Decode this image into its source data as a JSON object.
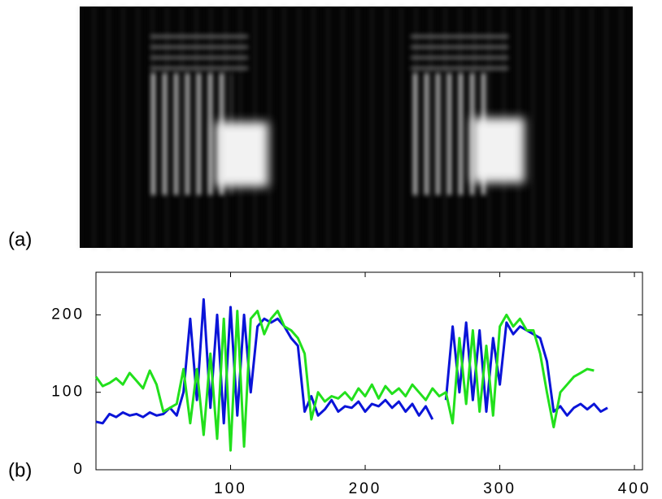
{
  "chart_data": {
    "type": "line",
    "panel_labels": [
      "(a)",
      "(b)"
    ],
    "x": [
      0,
      5,
      10,
      15,
      20,
      25,
      30,
      35,
      40,
      45,
      50,
      55,
      60,
      65,
      70,
      75,
      80,
      85,
      90,
      95,
      100,
      105,
      110,
      115,
      120,
      125,
      130,
      135,
      140,
      145,
      150,
      155,
      160,
      165,
      170,
      175,
      180,
      185,
      190,
      195,
      200,
      205,
      210,
      215,
      220,
      225,
      230,
      235,
      240,
      245,
      250,
      255,
      260,
      265,
      270,
      275,
      280,
      285,
      290,
      295,
      300,
      305,
      310,
      315,
      320,
      325,
      330,
      335,
      340,
      345,
      350,
      355,
      360,
      365,
      370,
      375,
      380
    ],
    "series": [
      {
        "color": "#0a14d8",
        "values": [
          62,
          60,
          72,
          68,
          74,
          70,
          72,
          68,
          74,
          70,
          72,
          80,
          70,
          100,
          195,
          90,
          220,
          80,
          200,
          60,
          210,
          70,
          200,
          100,
          185,
          195,
          190,
          195,
          185,
          170,
          160,
          75,
          95,
          70,
          78,
          90,
          75,
          82,
          80,
          88,
          75,
          85,
          82,
          90,
          80,
          88,
          75,
          85,
          70,
          82,
          65,
          null,
          90,
          185,
          100,
          190,
          90,
          180,
          75,
          170,
          110,
          190,
          175,
          185,
          180,
          175,
          170,
          140,
          75,
          82,
          70,
          80,
          85,
          78,
          85,
          75,
          80
        ]
      },
      {
        "color": "#22e01c",
        "values": [
          120,
          108,
          112,
          118,
          110,
          125,
          115,
          105,
          128,
          110,
          75,
          80,
          85,
          130,
          60,
          130,
          45,
          150,
          40,
          195,
          25,
          205,
          30,
          195,
          205,
          175,
          195,
          205,
          185,
          180,
          170,
          150,
          65,
          100,
          88,
          95,
          92,
          100,
          90,
          105,
          95,
          110,
          92,
          108,
          98,
          105,
          95,
          110,
          100,
          90,
          105,
          95,
          100,
          60,
          170,
          85,
          180,
          75,
          160,
          70,
          185,
          200,
          185,
          195,
          180,
          180,
          150,
          100,
          55,
          100,
          110,
          120,
          125,
          130,
          128,
          null,
          null
        ]
      }
    ],
    "xlim": [
      0,
      406
    ],
    "ylim": [
      0,
      255
    ],
    "xticks": [
      100,
      200,
      300,
      400
    ],
    "yticks": [
      0,
      100,
      200
    ]
  }
}
